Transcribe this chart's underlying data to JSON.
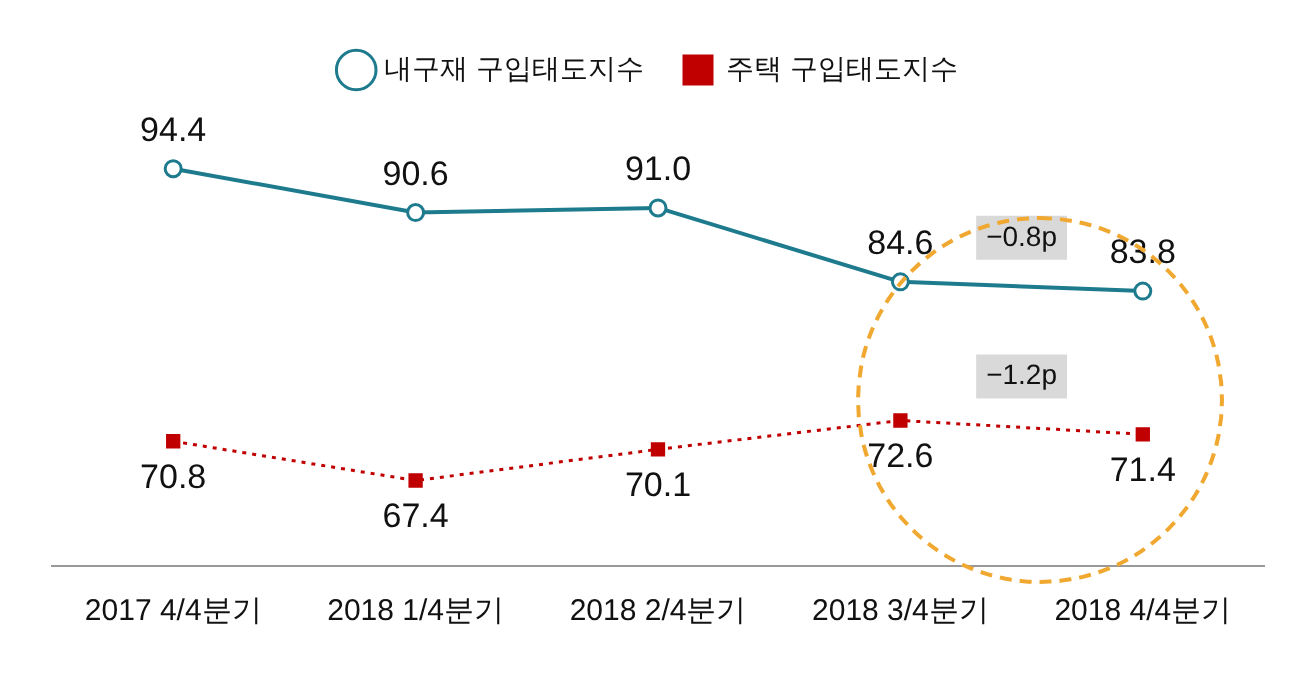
{
  "chart_data": {
    "type": "line",
    "categories": [
      "2017 4/4분기",
      "2018 1/4분기",
      "2018 2/4분기",
      "2018 3/4분기",
      "2018 4/4분기"
    ],
    "series": [
      {
        "name": "내구재 구입태도지수",
        "color": "#1e7b8e",
        "values": [
          94.4,
          90.6,
          91.0,
          84.6,
          83.8
        ],
        "value_labels": [
          "94.4",
          "90.6",
          "91.0",
          "84.6",
          "83.8"
        ],
        "marker": "circle",
        "line_style": "solid"
      },
      {
        "name": "주택 구입태도지수",
        "color": "#c00000",
        "values": [
          70.8,
          67.4,
          70.1,
          72.6,
          71.4
        ],
        "value_labels": [
          "70.8",
          "67.4",
          "70.1",
          "72.6",
          "71.4"
        ],
        "marker": "square",
        "line_style": "dotted"
      }
    ],
    "annotations": [
      "−0.8p",
      "−1.2p"
    ],
    "relative": false,
    "grid": false,
    "legend": "top"
  }
}
